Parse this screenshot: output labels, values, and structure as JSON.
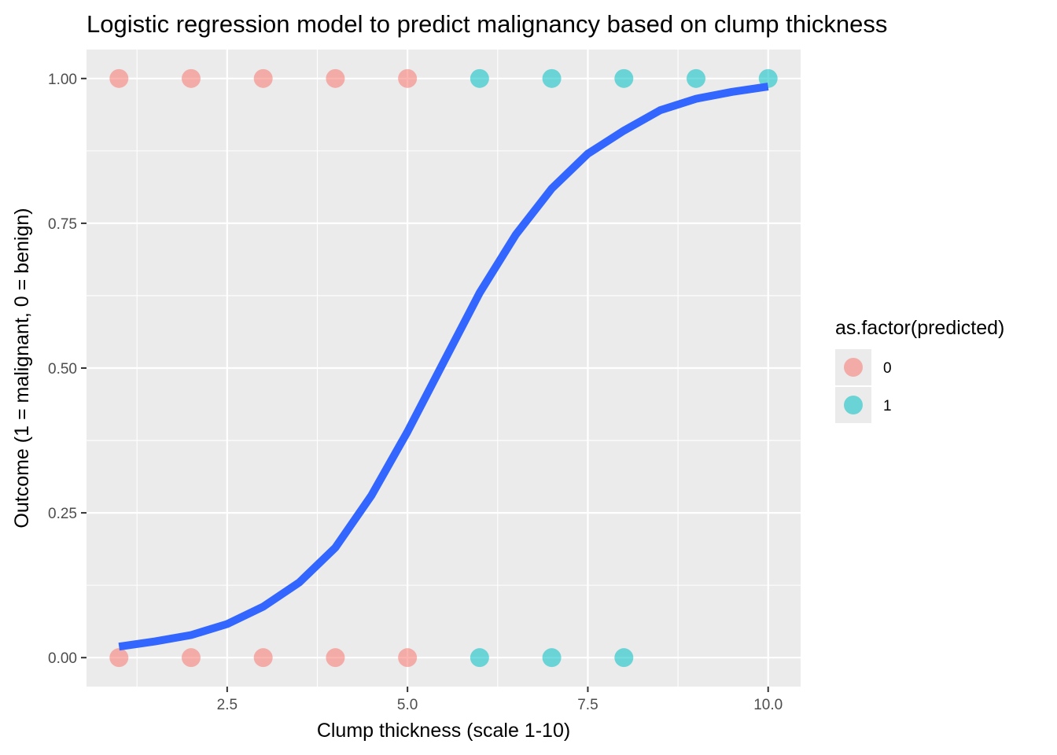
{
  "chart_data": {
    "type": "scatter",
    "title": "Logistic regression model to predict malignancy based on clump thickness",
    "xlabel": "Clump thickness (scale 1-10)",
    "ylabel": "Outcome (1 = malignant, 0 = benign)",
    "xlim": [
      0.55,
      10.45
    ],
    "ylim": [
      -0.05,
      1.05
    ],
    "x_ticks": [
      2.5,
      5.0,
      7.5,
      10.0
    ],
    "x_tick_labels": [
      "2.5",
      "5.0",
      "7.5",
      "10.0"
    ],
    "y_ticks": [
      0.0,
      0.25,
      0.5,
      0.75,
      1.0
    ],
    "y_tick_labels": [
      "0.00",
      "0.25",
      "0.50",
      "0.75",
      "1.00"
    ],
    "grid": true,
    "legend": {
      "title": "as.factor(predicted)",
      "placement": "right",
      "entries": [
        {
          "label": "0",
          "color": "#F8766D"
        },
        {
          "label": "1",
          "color": "#00BFC4"
        }
      ]
    },
    "points": [
      {
        "x": 1,
        "y": 1,
        "predicted": 0
      },
      {
        "x": 2,
        "y": 1,
        "predicted": 0
      },
      {
        "x": 3,
        "y": 1,
        "predicted": 0
      },
      {
        "x": 4,
        "y": 1,
        "predicted": 0
      },
      {
        "x": 5,
        "y": 1,
        "predicted": 0
      },
      {
        "x": 6,
        "y": 1,
        "predicted": 1
      },
      {
        "x": 7,
        "y": 1,
        "predicted": 1
      },
      {
        "x": 8,
        "y": 1,
        "predicted": 1
      },
      {
        "x": 9,
        "y": 1,
        "predicted": 1
      },
      {
        "x": 10,
        "y": 1,
        "predicted": 1
      },
      {
        "x": 1,
        "y": 0,
        "predicted": 0
      },
      {
        "x": 2,
        "y": 0,
        "predicted": 0
      },
      {
        "x": 3,
        "y": 0,
        "predicted": 0
      },
      {
        "x": 4,
        "y": 0,
        "predicted": 0
      },
      {
        "x": 5,
        "y": 0,
        "predicted": 0
      },
      {
        "x": 6,
        "y": 0,
        "predicted": 1
      },
      {
        "x": 7,
        "y": 0,
        "predicted": 1
      },
      {
        "x": 8,
        "y": 0,
        "predicted": 1
      }
    ],
    "fit_curve": {
      "color": "#3366FF",
      "x": [
        1,
        1.5,
        2,
        2.5,
        3,
        3.5,
        4,
        4.5,
        5,
        5.5,
        6,
        6.5,
        7,
        7.5,
        8,
        8.5,
        9,
        9.5,
        10
      ],
      "y": [
        0.019,
        0.028,
        0.039,
        0.058,
        0.088,
        0.13,
        0.19,
        0.28,
        0.39,
        0.51,
        0.63,
        0.73,
        0.81,
        0.87,
        0.91,
        0.945,
        0.965,
        0.977,
        0.986
      ]
    }
  }
}
